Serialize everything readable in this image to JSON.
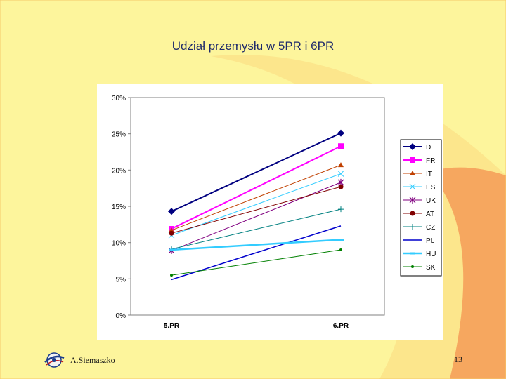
{
  "slide": {
    "title": "Udział przemysłu w 5PR i 6PR",
    "author": "A.Siemaszko",
    "page_number": "13"
  },
  "colors": {
    "background": "#fdf59c",
    "accent": "#f6a75f"
  },
  "chart_data": {
    "type": "line",
    "title": "Udział przemysłu w 5PR i 6PR",
    "xlabel": "",
    "ylabel": "",
    "categories": [
      "5.PR",
      "6.PR"
    ],
    "ylim": [
      0,
      30
    ],
    "yticks": [
      0,
      5,
      10,
      15,
      20,
      25,
      30
    ],
    "ytick_labels": [
      "0%",
      "5%",
      "10%",
      "15%",
      "20%",
      "25%",
      "30%"
    ],
    "legend_position": "right",
    "series": [
      {
        "name": "DE",
        "values": [
          14.3,
          25.1
        ],
        "color": "#000080",
        "marker": "diamond",
        "width": 2
      },
      {
        "name": "FR",
        "values": [
          11.9,
          23.3
        ],
        "color": "#ff00ff",
        "marker": "square",
        "width": 2
      },
      {
        "name": "IT",
        "values": [
          11.7,
          20.7
        ],
        "color": "#c04000",
        "marker": "triangle",
        "width": 1
      },
      {
        "name": "ES",
        "values": [
          11.0,
          19.5
        ],
        "color": "#33ccff",
        "marker": "x",
        "width": 1
      },
      {
        "name": "UK",
        "values": [
          8.9,
          18.3
        ],
        "color": "#800080",
        "marker": "star",
        "width": 1
      },
      {
        "name": "AT",
        "values": [
          11.3,
          17.7
        ],
        "color": "#800000",
        "marker": "circle",
        "width": 1
      },
      {
        "name": "CZ",
        "values": [
          9.1,
          14.6
        ],
        "color": "#008080",
        "marker": "plus",
        "width": 1
      },
      {
        "name": "PL",
        "values": [
          4.9,
          12.3
        ],
        "color": "#0000cc",
        "marker": "none",
        "width": 1.5
      },
      {
        "name": "HU",
        "values": [
          9.0,
          10.4
        ],
        "color": "#33ccff",
        "marker": "dash",
        "width": 2.5
      },
      {
        "name": "SK",
        "values": [
          5.5,
          9.0
        ],
        "color": "#008000",
        "marker": "dot",
        "width": 1
      }
    ]
  }
}
